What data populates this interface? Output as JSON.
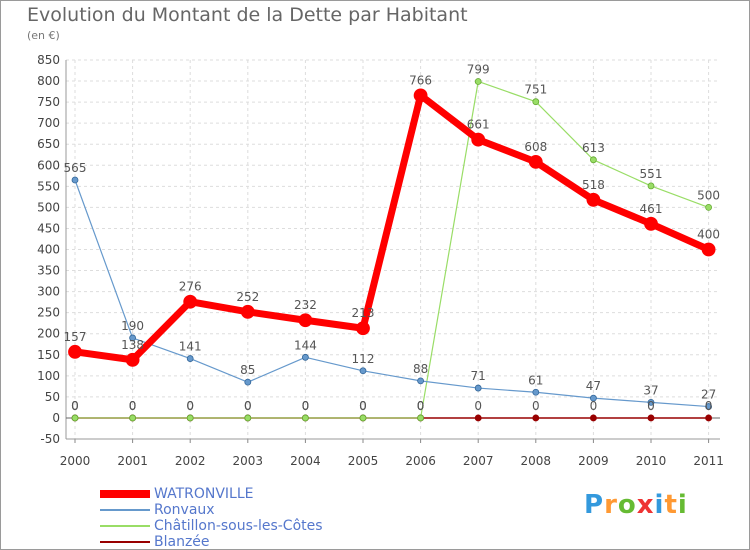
{
  "chart_data": {
    "type": "line",
    "title": "Evolution du Montant de la Dette par Habitant",
    "subtitle": "(en €)",
    "x": [
      "2000",
      "2001",
      "2002",
      "2003",
      "2004",
      "2005",
      "2006",
      "2007",
      "2008",
      "2009",
      "2010",
      "2011"
    ],
    "ylim": [
      -50,
      850
    ],
    "yticks": [
      -50,
      0,
      50,
      100,
      150,
      200,
      250,
      300,
      350,
      400,
      450,
      500,
      550,
      600,
      650,
      700,
      750,
      800,
      850
    ],
    "grid": true,
    "legend_position": "bottom-left",
    "series": [
      {
        "name": "WATRONVILLE",
        "color": "#ff0000",
        "values": [
          157,
          138,
          276,
          252,
          232,
          213,
          766,
          661,
          608,
          518,
          461,
          400
        ]
      },
      {
        "name": "Ronvaux",
        "color": "#6699cc",
        "values": [
          565,
          190,
          141,
          85,
          144,
          112,
          88,
          71,
          61,
          47,
          37,
          27
        ]
      },
      {
        "name": "Châtillon-sous-les-Côtes",
        "color": "#99dd66",
        "values": [
          0,
          0,
          0,
          0,
          0,
          0,
          0,
          799,
          751,
          613,
          551,
          500
        ]
      },
      {
        "name": "Blanzée",
        "color": "#990000",
        "values": [
          0,
          0,
          0,
          0,
          0,
          0,
          0,
          0,
          0,
          0,
          0,
          0
        ]
      }
    ]
  },
  "logo": {
    "letters": [
      "P",
      "r",
      "o",
      "x",
      "i",
      "t",
      "i"
    ]
  }
}
